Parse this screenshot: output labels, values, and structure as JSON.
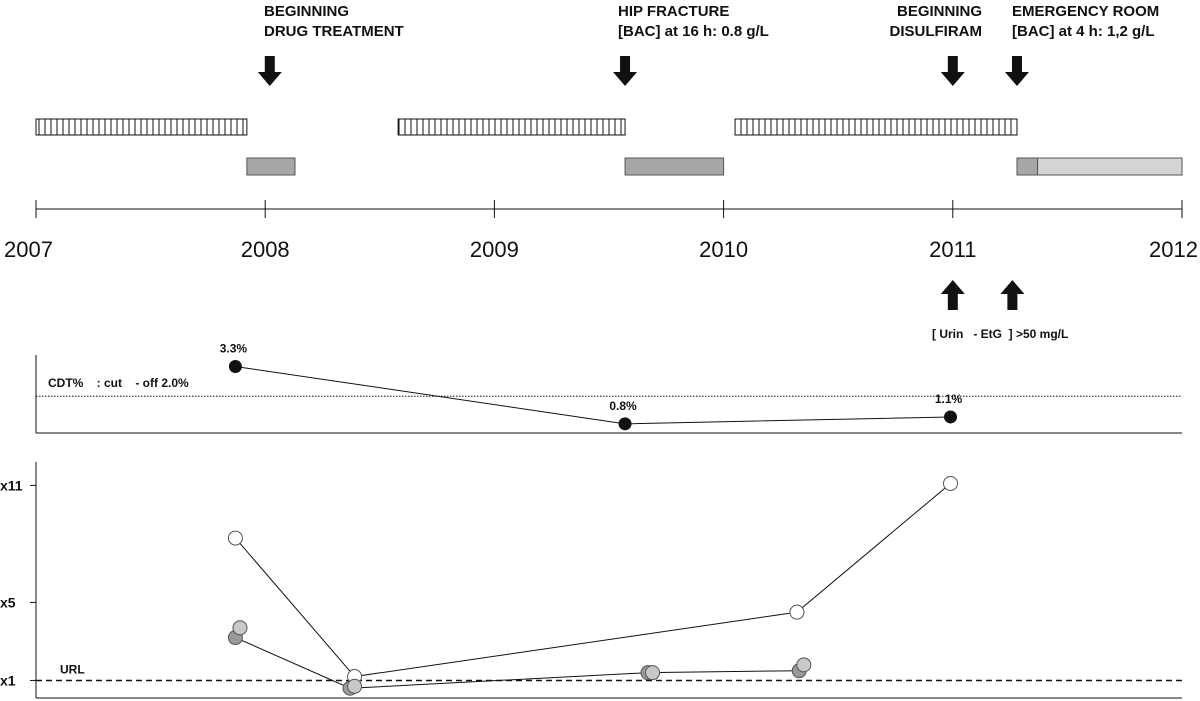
{
  "chart_data": [
    {
      "type": "timeline",
      "xlim": [
        2007,
        2012
      ],
      "tick_labels": [
        "2007",
        "2008",
        "2009",
        "2010",
        "2011",
        "2012"
      ],
      "events": [
        {
          "line1": "BEGINNING",
          "line2": "DRUG TREATMENT",
          "x": 2008.02
        },
        {
          "line1": "HIP FRACTURE",
          "line2": "[BAC] at 16 h: 0.8 g/L",
          "x": 2009.57
        },
        {
          "line1": "BEGINNING",
          "line2": "DISULFIRAM",
          "x": 2011.0
        },
        {
          "line1": "EMERGENCY ROOM",
          "line2": "[BAC] at 4 h: 1,2 g/L",
          "x": 2011.28
        }
      ],
      "drinking_periods": [
        [
          2007.0,
          2007.92
        ],
        [
          2008.58,
          2009.57
        ],
        [
          2010.05,
          2011.28
        ]
      ],
      "treatment_periods": [
        {
          "start": 2007.92,
          "end": 2008.13,
          "color": "#a6a6a6"
        },
        {
          "start": 2009.57,
          "end": 2010.0,
          "color": "#a6a6a6"
        },
        {
          "start": 2011.28,
          "end": 2011.37,
          "color": "#a6a6a6"
        },
        {
          "start": 2011.37,
          "end": 2012.0,
          "color": "#d4d4d4"
        }
      ],
      "etg_markers": [
        2011.0,
        2011.26
      ],
      "etg_label": "[ Urin   - EtG  ] >50 mg/L"
    },
    {
      "type": "line",
      "name": "CDT%",
      "cutoff_label": "CDT%    : cut    - off 2.0%",
      "cutoff": 2.0,
      "ylim": [
        0.4,
        3.8
      ],
      "points": [
        {
          "x": 2007.87,
          "y": 3.3,
          "label": "3.3%"
        },
        {
          "x": 2009.57,
          "y": 0.8,
          "label": "0.8%"
        },
        {
          "x": 2010.99,
          "y": 1.1,
          "label": "1.1%"
        }
      ]
    },
    {
      "type": "scatter",
      "y_ticks": [
        "x11",
        "x5",
        "x1"
      ],
      "y_tick_values": [
        11,
        5,
        1
      ],
      "url_label": "URL",
      "url_value": 1,
      "ylim": [
        0.1,
        12.2
      ],
      "series": [
        {
          "color": "#ffffff",
          "connected": true,
          "points": [
            {
              "x": 2007.87,
              "y": 8.3
            },
            {
              "x": 2008.39,
              "y": 1.2
            },
            {
              "x": 2010.32,
              "y": 4.5
            },
            {
              "x": 2010.99,
              "y": 11.1
            }
          ]
        },
        {
          "color": "#999999",
          "connected": true,
          "points": [
            {
              "x": 2007.87,
              "y": 3.2
            },
            {
              "x": 2008.37,
              "y": 0.6
            },
            {
              "x": 2009.67,
              "y": 1.4
            },
            {
              "x": 2010.33,
              "y": 1.5
            }
          ]
        },
        {
          "color": "#c8c8c8",
          "connected": false,
          "points": [
            {
              "x": 2007.89,
              "y": 3.7
            },
            {
              "x": 2008.39,
              "y": 0.7
            },
            {
              "x": 2009.69,
              "y": 1.4
            },
            {
              "x": 2010.35,
              "y": 1.8
            }
          ]
        }
      ]
    }
  ]
}
